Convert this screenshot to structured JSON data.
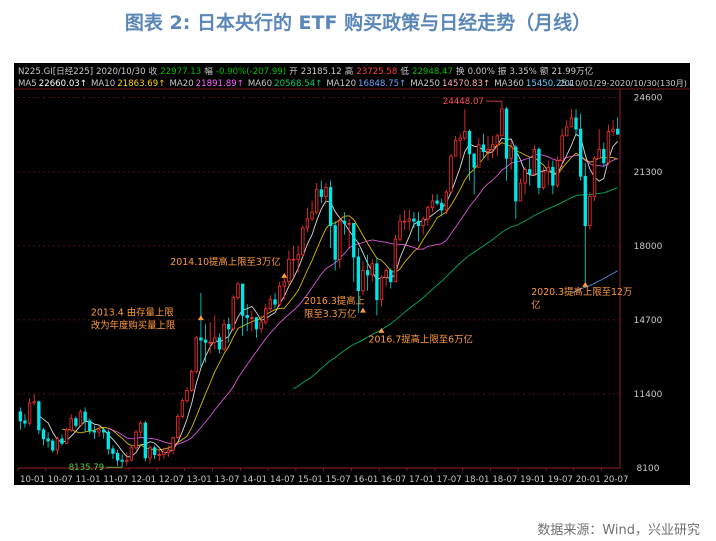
{
  "figure": {
    "title": "图表 2: 日本央行的 ETF 购买政策与日经走势（月线）",
    "source": "数据来源：Wind，兴业研究"
  },
  "quote_bar": [
    {
      "label": "N225.GI[日经225]",
      "color": "#c8c8c8"
    },
    {
      "label": "2020/10/30",
      "color": "#c8c8c8"
    },
    {
      "label": "收",
      "color": "#c8c8c8"
    },
    {
      "label": "22977.13",
      "color": "#00c000"
    },
    {
      "label": "幅",
      "color": "#c8c8c8"
    },
    {
      "label": "-0.90%(-207.99)",
      "color": "#00c000"
    },
    {
      "label": "开",
      "color": "#c8c8c8"
    },
    {
      "label": "23185.12",
      "color": "#c8c8c8"
    },
    {
      "label": "高",
      "color": "#c8c8c8"
    },
    {
      "label": "23725.58",
      "color": "#ff4040"
    },
    {
      "label": "低",
      "color": "#c8c8c8"
    },
    {
      "label": "22948.47",
      "color": "#00c000"
    },
    {
      "label": "换",
      "color": "#c8c8c8"
    },
    {
      "label": "0.00%",
      "color": "#c8c8c8"
    },
    {
      "label": "振",
      "color": "#c8c8c8"
    },
    {
      "label": "3.35%",
      "color": "#c8c8c8"
    },
    {
      "label": "额",
      "color": "#c8c8c8"
    },
    {
      "label": "21.99万亿",
      "color": "#c8c8c8"
    }
  ],
  "ma_bar": [
    {
      "name": "MA5",
      "value": "22660.03↑",
      "color": "#ffffff"
    },
    {
      "name": "MA10",
      "value": "21863.69↑",
      "color": "#ffd700"
    },
    {
      "name": "MA20",
      "value": "21891.89↑",
      "color": "#ff66ff"
    },
    {
      "name": "MA60",
      "value": "20568.54↑",
      "color": "#00cc66"
    },
    {
      "name": "MA120",
      "value": "16848.75↑",
      "color": "#66a3ff"
    },
    {
      "name": "MA250",
      "value": "14570.83↑",
      "color": "#ffb0b0"
    },
    {
      "name": "MA360",
      "value": "15450.25↓",
      "color": "#66ccff"
    }
  ],
  "range_label": "2010/01/29-2020/10/30(130月)",
  "chart_data": {
    "type": "candlestick",
    "y_ticks": [
      8100,
      11400,
      14700,
      18000,
      21300,
      24600
    ],
    "ylim": [
      8100,
      24900
    ],
    "x_labels": [
      "10-01",
      "10-07",
      "11-01",
      "11-07",
      "12-01",
      "12-07",
      "13-01",
      "13-07",
      "14-01",
      "14-07",
      "15-01",
      "15-07",
      "16-01",
      "16-07",
      "17-01",
      "17-07",
      "18-01",
      "18-07",
      "19-01",
      "19-07",
      "20-01",
      "20-07"
    ],
    "high_label": "24448.07",
    "high_value": 24448,
    "low_label": "8135.79",
    "low_value": 8135,
    "candles": [
      [
        10600,
        10200,
        10800,
        9800
      ],
      [
        10200,
        10100,
        10500,
        9900
      ],
      [
        10100,
        11000,
        11200,
        10000
      ],
      [
        11000,
        11050,
        11400,
        10900
      ],
      [
        11050,
        9800,
        11100,
        9600
      ],
      [
        9800,
        9400,
        9900,
        9100
      ],
      [
        9400,
        9300,
        9700,
        9000
      ],
      [
        9300,
        8900,
        9400,
        8800
      ],
      [
        8900,
        9400,
        9500,
        8700
      ],
      [
        9400,
        9200,
        9600,
        9100
      ],
      [
        9200,
        9800,
        9900,
        9200
      ],
      [
        9800,
        10300,
        10500,
        9700
      ],
      [
        10300,
        10000,
        10400,
        9900
      ],
      [
        10000,
        10600,
        10700,
        10000
      ],
      [
        10600,
        10200,
        10800,
        9700
      ],
      [
        10200,
        9750,
        10300,
        9600
      ],
      [
        9750,
        9700,
        10000,
        9400
      ],
      [
        9700,
        9800,
        10000,
        9500
      ],
      [
        9800,
        9700,
        9900,
        9400
      ],
      [
        9700,
        8950,
        9800,
        8700
      ],
      [
        8950,
        8750,
        9100,
        8500
      ],
      [
        8750,
        8450,
        8900,
        8200
      ],
      [
        8450,
        8400,
        8700,
        8136
      ],
      [
        8400,
        8450,
        8800,
        8200
      ],
      [
        8450,
        9000,
        9100,
        8400
      ],
      [
        9000,
        9700,
        9800,
        8900
      ],
      [
        9700,
        10100,
        10200,
        9500
      ],
      [
        10100,
        8550,
        10200,
        8400
      ],
      [
        8550,
        9000,
        9100,
        8300
      ],
      [
        9000,
        8700,
        9100,
        8500
      ],
      [
        8700,
        8700,
        8900,
        8400
      ],
      [
        8700,
        8800,
        9000,
        8500
      ],
      [
        8800,
        8900,
        9100,
        8600
      ],
      [
        8900,
        9450,
        9500,
        8700
      ],
      [
        9450,
        10400,
        10500,
        9400
      ],
      [
        10400,
        11100,
        11200,
        10300
      ],
      [
        11100,
        11550,
        11700,
        11000
      ],
      [
        11550,
        12400,
        12500,
        11500
      ],
      [
        12400,
        13900,
        14000,
        12300
      ],
      [
        13900,
        13800,
        15900,
        12600
      ],
      [
        13800,
        13700,
        14500,
        12800
      ],
      [
        13700,
        13700,
        14600,
        13200
      ],
      [
        13700,
        13900,
        14900,
        13400
      ],
      [
        13900,
        13400,
        14100,
        13200
      ],
      [
        13400,
        14500,
        14700,
        13300
      ],
      [
        14500,
        14300,
        14800,
        13700
      ],
      [
        14300,
        15700,
        15800,
        14200
      ],
      [
        15700,
        16300,
        16400,
        15600
      ],
      [
        16300,
        14900,
        16300,
        14000
      ],
      [
        14900,
        14800,
        15400,
        14200
      ],
      [
        14800,
        14800,
        15100,
        14200
      ],
      [
        14800,
        14300,
        14500,
        13900
      ],
      [
        14300,
        14600,
        14900,
        14100
      ],
      [
        14600,
        15200,
        15400,
        14500
      ],
      [
        15200,
        15600,
        15800,
        15100
      ],
      [
        15600,
        15400,
        15900,
        15200
      ],
      [
        15400,
        16200,
        16400,
        15300
      ],
      [
        16200,
        16400,
        16600,
        15600
      ],
      [
        16400,
        17400,
        17800,
        16200
      ],
      [
        17400,
        17400,
        18000,
        16600
      ],
      [
        17400,
        17600,
        18000,
        16800
      ],
      [
        17600,
        18800,
        18900,
        17500
      ],
      [
        18800,
        19200,
        19700,
        18600
      ],
      [
        19200,
        19500,
        20000,
        19100
      ],
      [
        19500,
        20500,
        20800,
        19400
      ],
      [
        20500,
        20200,
        20900,
        19900
      ],
      [
        20200,
        20600,
        20800,
        19900
      ],
      [
        20600,
        18900,
        20900,
        17900
      ],
      [
        18900,
        17400,
        19100,
        16900
      ],
      [
        17400,
        19100,
        19200,
        17000
      ],
      [
        19100,
        19000,
        19500,
        18500
      ],
      [
        19000,
        19000,
        19200,
        17900
      ],
      [
        19000,
        17500,
        19000,
        16400
      ],
      [
        17500,
        16000,
        17900,
        15000
      ],
      [
        16000,
        16900,
        17300,
        15800
      ],
      [
        16900,
        16700,
        17600,
        16000
      ],
      [
        16700,
        17200,
        17400,
        16400
      ],
      [
        17200,
        15600,
        17500,
        14900
      ],
      [
        15600,
        16600,
        16700,
        15300
      ],
      [
        16600,
        16900,
        17000,
        16200
      ],
      [
        16900,
        16400,
        17000,
        16100
      ],
      [
        16400,
        18300,
        18500,
        16400
      ],
      [
        18300,
        19100,
        19400,
        18200
      ],
      [
        19100,
        19100,
        19600,
        18700
      ],
      [
        19100,
        19200,
        19600,
        18700
      ],
      [
        19200,
        19100,
        19500,
        18800
      ],
      [
        19100,
        18900,
        19500,
        18200
      ],
      [
        18900,
        19200,
        19300,
        18500
      ],
      [
        19200,
        19700,
        19800,
        18900
      ],
      [
        19700,
        20000,
        20300,
        19500
      ],
      [
        20000,
        19900,
        20300,
        19800
      ],
      [
        19900,
        19600,
        20100,
        19300
      ],
      [
        19600,
        20400,
        20500,
        19400
      ],
      [
        20400,
        22000,
        22100,
        20300
      ],
      [
        22000,
        22700,
        22900,
        22100
      ],
      [
        22700,
        22800,
        23000,
        21900
      ],
      [
        22800,
        23100,
        24100,
        22700
      ],
      [
        23100,
        22100,
        23200,
        20900
      ],
      [
        22100,
        21500,
        22000,
        20300
      ],
      [
        21500,
        22500,
        22800,
        21500
      ],
      [
        22500,
        22200,
        23000,
        21900
      ],
      [
        22200,
        22300,
        22900,
        21800
      ],
      [
        22300,
        22500,
        22900,
        21900
      ],
      [
        22500,
        22900,
        23000,
        22000
      ],
      [
        22900,
        24100,
        24448,
        22900
      ],
      [
        24100,
        21900,
        24200,
        20900
      ],
      [
        21900,
        22400,
        22700,
        21400
      ],
      [
        22400,
        20000,
        22500,
        19200
      ],
      [
        20000,
        20800,
        21000,
        20000
      ],
      [
        20800,
        21400,
        21500,
        20300
      ],
      [
        21400,
        21200,
        21900,
        20700
      ],
      [
        21200,
        22300,
        22500,
        21100
      ],
      [
        22300,
        20600,
        22400,
        20300
      ],
      [
        20600,
        21300,
        21500,
        20500
      ],
      [
        21300,
        21500,
        21800,
        20700
      ],
      [
        21500,
        20700,
        21800,
        20300
      ],
      [
        20700,
        21800,
        22000,
        20600
      ],
      [
        21800,
        22900,
        23200,
        21500
      ],
      [
        22900,
        23300,
        23600,
        22900
      ],
      [
        23300,
        23700,
        24100,
        23300
      ],
      [
        23700,
        23200,
        24100,
        22900
      ],
      [
        23200,
        21100,
        23900,
        20900
      ],
      [
        21100,
        18900,
        21700,
        16350
      ],
      [
        18900,
        20200,
        20400,
        18700
      ],
      [
        20200,
        21900,
        22000,
        20000
      ],
      [
        21900,
        22300,
        23200,
        21900
      ],
      [
        22300,
        21700,
        22600,
        21500
      ],
      [
        21700,
        23100,
        23400,
        21600
      ],
      [
        23100,
        23200,
        23600,
        22900
      ],
      [
        23200,
        22977,
        23726,
        22948
      ]
    ],
    "annotations": [
      {
        "lines": [
          "2013.4 由存量上限",
          "改为年度购买量上限"
        ],
        "month_index": 39
      },
      {
        "lines": [
          "2014.10提高上限至3万亿"
        ],
        "month_index": 57
      },
      {
        "lines": [
          "2016.3提高上",
          "限至3.3万亿"
        ],
        "month_index": 74
      },
      {
        "lines": [
          "2016.7提高上限至6万亿"
        ],
        "month_index": 78
      },
      {
        "lines": [
          "2020.3提高上限至12万",
          "亿"
        ],
        "month_index": 122
      }
    ]
  },
  "colors": {
    "up": "#ff3030",
    "down": "#00e5e5",
    "grid": "#8a1a1a",
    "axis_text": "#c8c8c8",
    "annotation": "#ff9a3c"
  }
}
